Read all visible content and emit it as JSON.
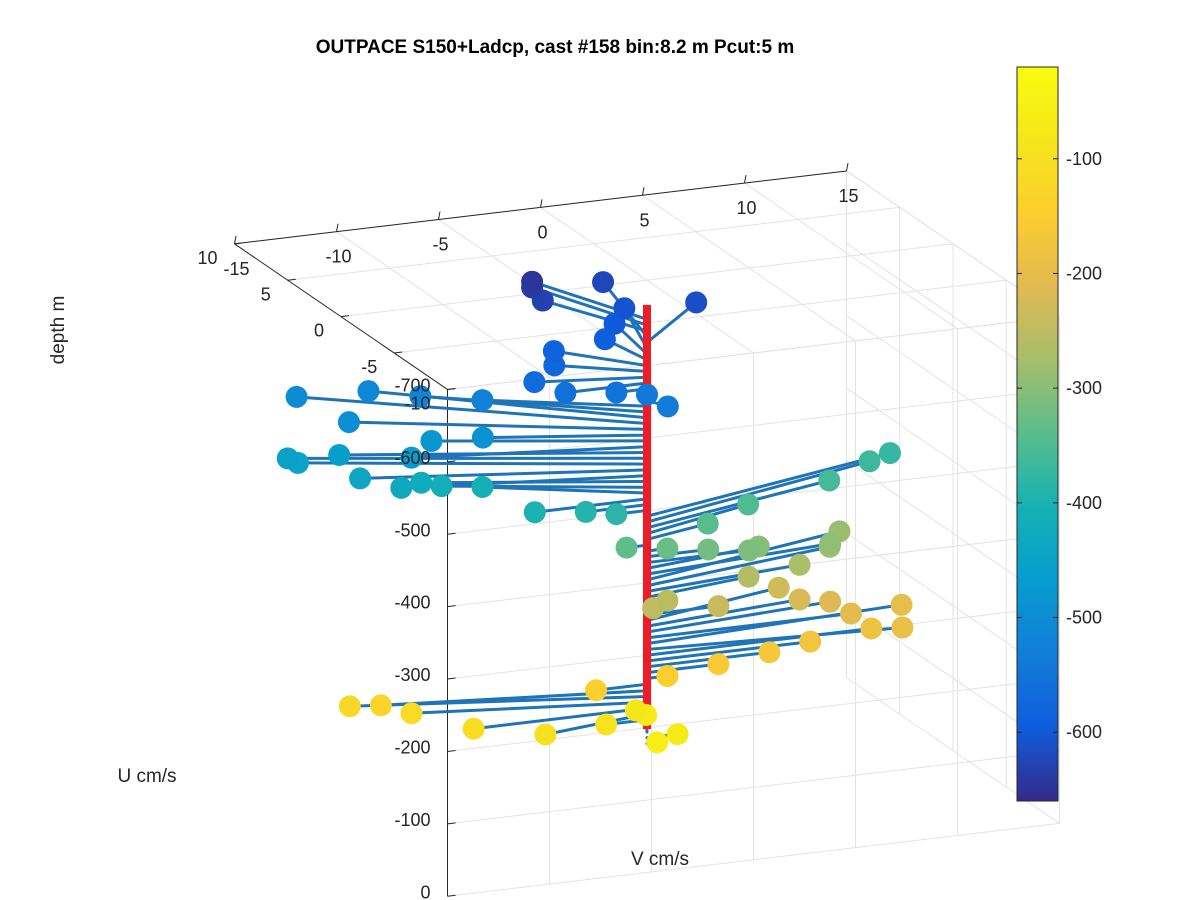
{
  "chart_data": {
    "type": "scatter",
    "title": "OUTPACE S150+Ladcp, cast #158 bin:8.2 m  Pcut:5 m",
    "xlabel": "V cm/s",
    "ylabel": "U cm/s",
    "zlabel": "depth m",
    "xlim": [
      -15,
      15
    ],
    "ylim": [
      -10,
      10
    ],
    "zlim": [
      -700,
      0
    ],
    "x_ticks": [
      "-15",
      "-10",
      "-5",
      "0",
      "5",
      "10",
      "15"
    ],
    "y_ticks": [
      "-10",
      "-5",
      "0",
      "5",
      "10"
    ],
    "z_ticks": [
      "0",
      "-100",
      "-200",
      "-300",
      "-400",
      "-500",
      "-600",
      "-700"
    ],
    "colorbar": {
      "range": [
        -660,
        -20
      ],
      "ticks": [
        "-100",
        "-200",
        "-300",
        "-400",
        "-500",
        "-600"
      ],
      "colormap": "parula"
    },
    "grid": true,
    "reference_line_color": "#ee1c24",
    "stick_color": "#1f74b8",
    "series": [
      {
        "type": "current-vectors",
        "points": [
          {
            "depth": -60,
            "v": 0.5,
            "u": 0
          },
          {
            "depth": -68,
            "v": 1.5,
            "u": 0
          },
          {
            "depth": -76,
            "v": 1.0,
            "u": 2
          },
          {
            "depth": -84,
            "v": 0.5,
            "u": 2
          },
          {
            "depth": -93,
            "v": -2.0,
            "u": 0
          },
          {
            "depth": -101,
            "v": -5.5,
            "u": -1
          },
          {
            "depth": -109,
            "v": -8.5,
            "u": 0
          },
          {
            "depth": -117,
            "v": -10.5,
            "u": 2
          },
          {
            "depth": -125,
            "v": -13.0,
            "u": 3
          },
          {
            "depth": -133,
            "v": -12.0,
            "u": 2
          },
          {
            "depth": -142,
            "v": -2.5,
            "u": 0
          },
          {
            "depth": -150,
            "v": 1.0,
            "u": 0
          },
          {
            "depth": -158,
            "v": 3.5,
            "u": 0
          },
          {
            "depth": -166,
            "v": 6.0,
            "u": 0
          },
          {
            "depth": -174,
            "v": 8.0,
            "u": 0
          },
          {
            "depth": -182,
            "v": 11.0,
            "u": 0
          },
          {
            "depth": -190,
            "v": 12.0,
            "u": -1
          },
          {
            "depth": -198,
            "v": 13.0,
            "u": 1
          },
          {
            "depth": -206,
            "v": 10.0,
            "u": 0
          },
          {
            "depth": -214,
            "v": 9.5,
            "u": 1
          },
          {
            "depth": -222,
            "v": 8.0,
            "u": 1
          },
          {
            "depth": -230,
            "v": 7.5,
            "u": 2
          },
          {
            "depth": -238,
            "v": 3.5,
            "u": 0
          },
          {
            "depth": -246,
            "v": 0.3,
            "u": 0
          },
          {
            "depth": -254,
            "v": 1.0,
            "u": 0
          },
          {
            "depth": -262,
            "v": 5.5,
            "u": 1
          },
          {
            "depth": -270,
            "v": 8.0,
            "u": 1
          },
          {
            "depth": -278,
            "v": 10.0,
            "u": 2
          },
          {
            "depth": -286,
            "v": 11.0,
            "u": 3
          },
          {
            "depth": -294,
            "v": 9.5,
            "u": 1
          },
          {
            "depth": -302,
            "v": 6.0,
            "u": 1
          },
          {
            "depth": -310,
            "v": 5.0,
            "u": 0
          },
          {
            "depth": -318,
            "v": 3.0,
            "u": 0
          },
          {
            "depth": -326,
            "v": 1.0,
            "u": 0
          },
          {
            "depth": -334,
            "v": -1.0,
            "u": 0
          },
          {
            "depth": -342,
            "v": 3.5,
            "u": 1
          },
          {
            "depth": -350,
            "v": 6.0,
            "u": 2
          },
          {
            "depth": -358,
            "v": 10.5,
            "u": 3
          },
          {
            "depth": -366,
            "v": 13.0,
            "u": 4
          },
          {
            "depth": -374,
            "v": 14.0,
            "u": 4
          },
          {
            "depth": -382,
            "v": -1.5,
            "u": 0
          },
          {
            "depth": -390,
            "v": -3.0,
            "u": 0
          },
          {
            "depth": -398,
            "v": -5.5,
            "u": 0
          },
          {
            "depth": -406,
            "v": -6.5,
            "u": 3
          },
          {
            "depth": -414,
            "v": -8.5,
            "u": 3
          },
          {
            "depth": -422,
            "v": -9.5,
            "u": 3
          },
          {
            "depth": -430,
            "v": -11.0,
            "u": 2
          },
          {
            "depth": -438,
            "v": -12.5,
            "u": 3
          },
          {
            "depth": -446,
            "v": -14.5,
            "u": 5
          },
          {
            "depth": -454,
            "v": -15.0,
            "u": 5
          },
          {
            "depth": -462,
            "v": -13.0,
            "u": 4
          },
          {
            "depth": -470,
            "v": -10.5,
            "u": 2
          },
          {
            "depth": -478,
            "v": -9.0,
            "u": 3
          },
          {
            "depth": -486,
            "v": -7.0,
            "u": 2
          },
          {
            "depth": -494,
            "v": -12.0,
            "u": 5
          },
          {
            "depth": -502,
            "v": -13.0,
            "u": 8
          },
          {
            "depth": -510,
            "v": -10.0,
            "u": 7
          },
          {
            "depth": -518,
            "v": -8.5,
            "u": 5
          },
          {
            "depth": -526,
            "v": -6.5,
            "u": 3
          },
          {
            "depth": -534,
            "v": 0.5,
            "u": -1
          },
          {
            "depth": -542,
            "v": 0.0,
            "u": 0
          },
          {
            "depth": -550,
            "v": -1.5,
            "u": 0
          },
          {
            "depth": -558,
            "v": -4.0,
            "u": 0
          },
          {
            "depth": -566,
            "v": -5.0,
            "u": 1
          },
          {
            "depth": -574,
            "v": -3.5,
            "u": 2
          },
          {
            "depth": -582,
            "v": -3.0,
            "u": 3
          },
          {
            "depth": -590,
            "v": -0.5,
            "u": 3
          },
          {
            "depth": -598,
            "v": 0.5,
            "u": 4
          },
          {
            "depth": -606,
            "v": 1.5,
            "u": 5
          },
          {
            "depth": -614,
            "v": 4.5,
            "u": 4
          },
          {
            "depth": -622,
            "v": 1.5,
            "u": 7
          },
          {
            "depth": -630,
            "v": -2.5,
            "u": 5
          },
          {
            "depth": -638,
            "v": -2.5,
            "u": 6
          },
          {
            "depth": -646,
            "v": -2.5,
            "u": 6
          }
        ]
      }
    ]
  }
}
